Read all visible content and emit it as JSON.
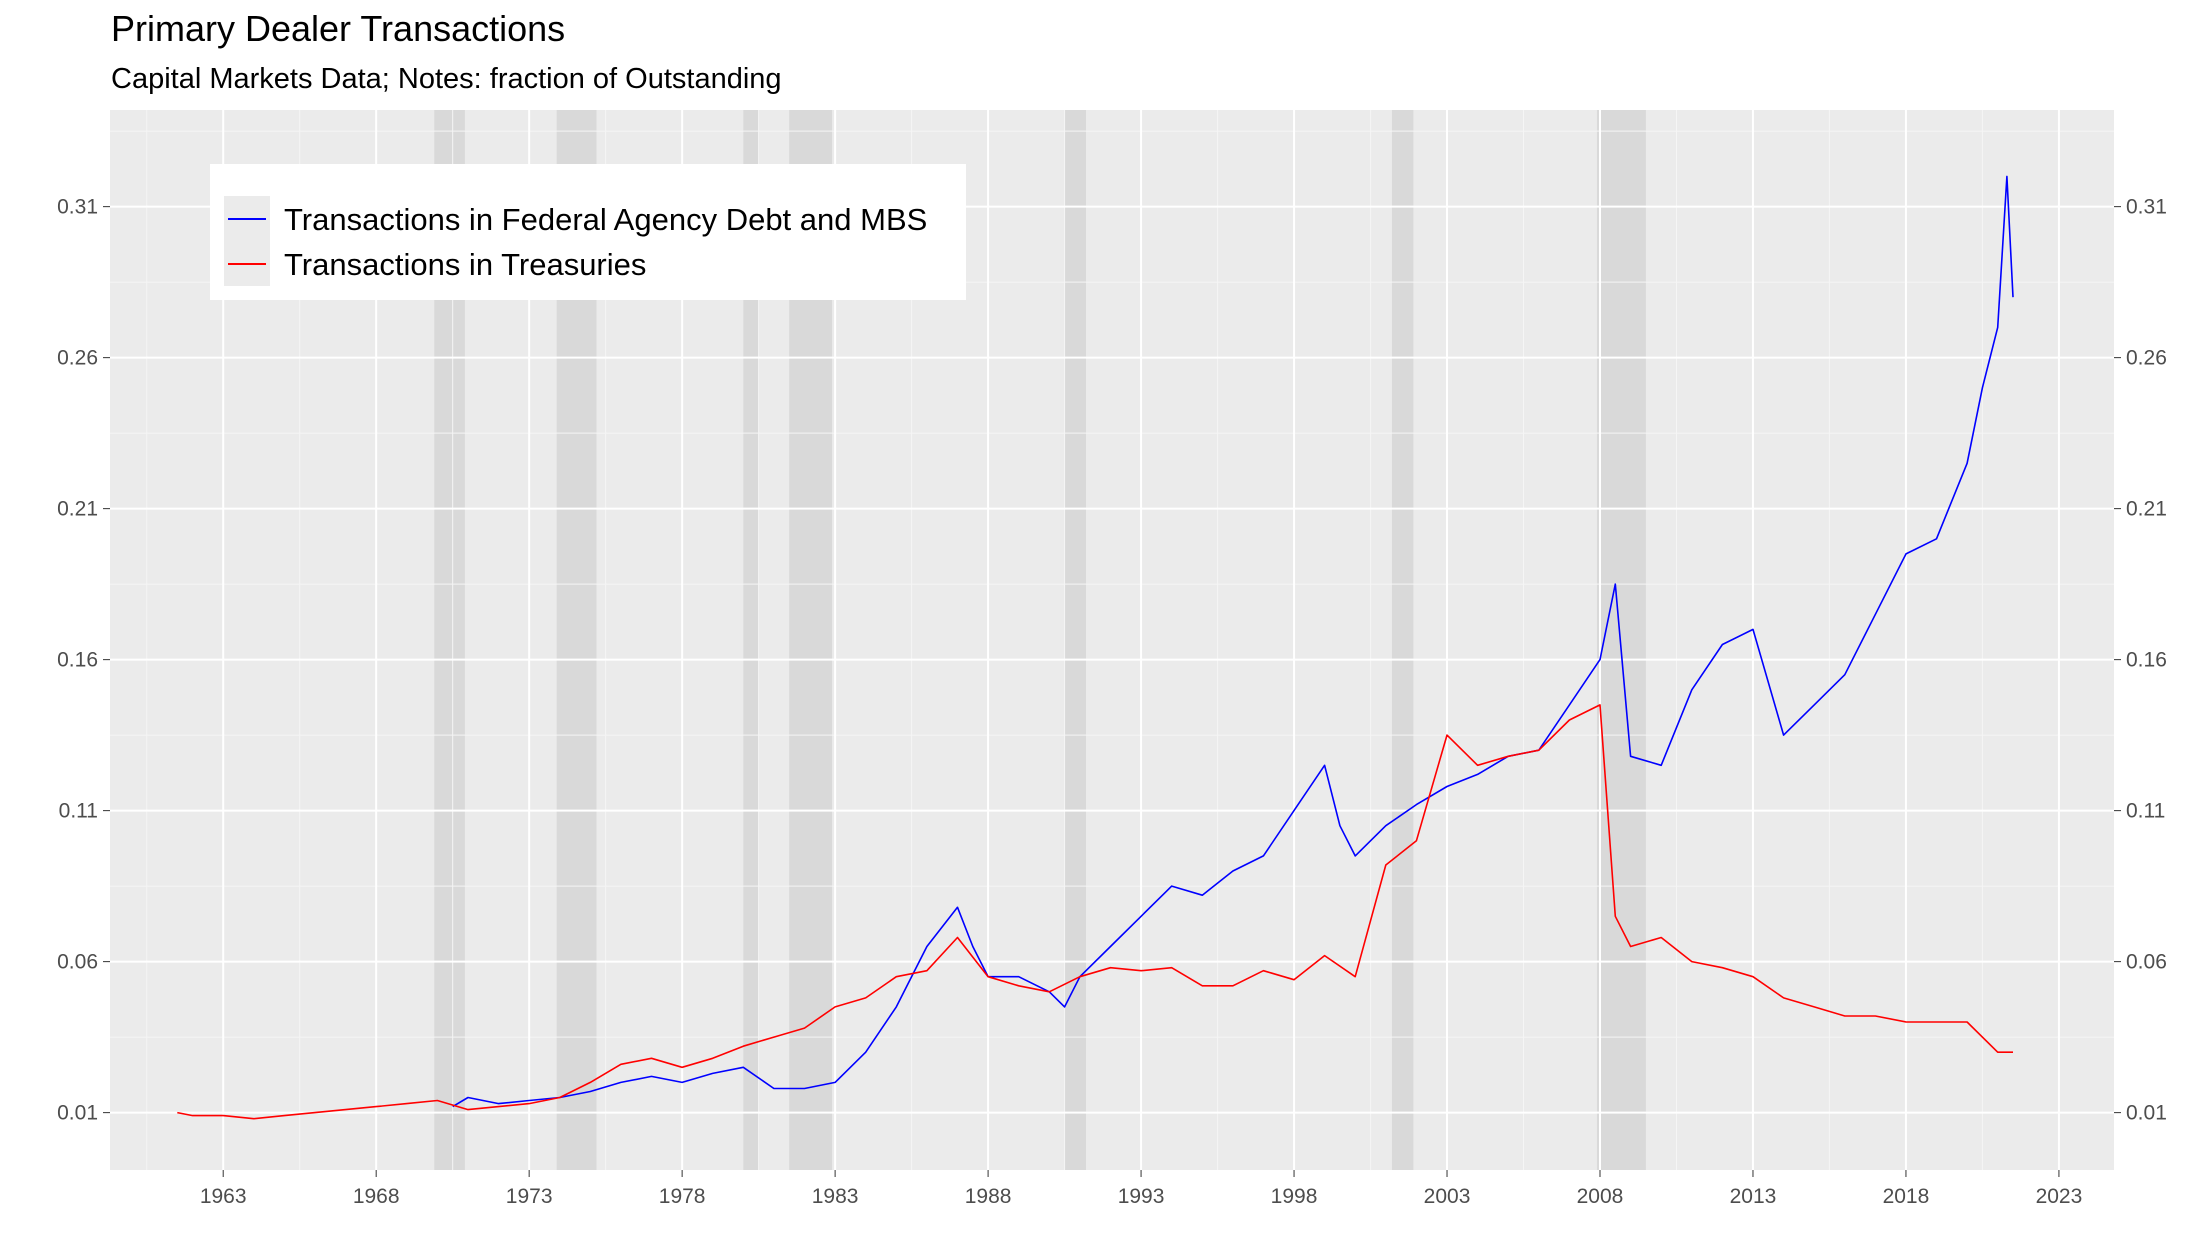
{
  "chart_data": {
    "type": "line",
    "title": "Primary Dealer Transactions",
    "subtitle": "Capital Markets Data; Notes: fraction of Outstanding",
    "xlabel": "",
    "ylabel": "",
    "x_ticks": [
      "1963",
      "1968",
      "1973",
      "1978",
      "1983",
      "1988",
      "1993",
      "1998",
      "2003",
      "2008",
      "2013",
      "2018",
      "2023"
    ],
    "y_ticks": [
      "0.01",
      "0.06",
      "0.11",
      "0.16",
      "0.21",
      "0.26",
      "0.31"
    ],
    "xlim": [
      1959.3,
      2024.8
    ],
    "ylim": [
      -0.009,
      0.342
    ],
    "grid": true,
    "legend_position": "top-left",
    "recession_bands": [
      [
        1969.9,
        1970.9
      ],
      [
        1973.9,
        1975.2
      ],
      [
        1980.0,
        1980.5
      ],
      [
        1981.5,
        1982.9
      ],
      [
        1990.5,
        1991.2
      ],
      [
        2001.2,
        2001.9
      ],
      [
        2007.9,
        2009.5
      ]
    ],
    "series": [
      {
        "name": "Transactions in Federal Agency Debt and MBS",
        "color": "#0000ff",
        "x": [
          1970.5,
          1971.0,
          1972.0,
          1973.0,
          1974.0,
          1975.0,
          1976.0,
          1977.0,
          1978.0,
          1979.0,
          1980.0,
          1981.0,
          1982.0,
          1983.0,
          1984.0,
          1985.0,
          1986.0,
          1987.0,
          1987.5,
          1988.0,
          1989.0,
          1990.0,
          1990.5,
          1991.0,
          1992.0,
          1993.0,
          1994.0,
          1995.0,
          1996.0,
          1997.0,
          1998.0,
          1999.0,
          1999.5,
          2000.0,
          2001.0,
          2002.0,
          2003.0,
          2004.0,
          2005.0,
          2006.0,
          2007.0,
          2008.0,
          2008.5,
          2009.0,
          2010.0,
          2011.0,
          2012.0,
          2013.0,
          2014.0,
          2015.0,
          2016.0,
          2017.0,
          2018.0,
          2019.0,
          2020.0,
          2020.5,
          2021.0,
          2021.3,
          2021.5
        ],
        "y": [
          0.012,
          0.015,
          0.013,
          0.014,
          0.015,
          0.017,
          0.02,
          0.022,
          0.02,
          0.023,
          0.025,
          0.018,
          0.018,
          0.02,
          0.03,
          0.045,
          0.065,
          0.078,
          0.065,
          0.055,
          0.055,
          0.05,
          0.045,
          0.055,
          0.065,
          0.075,
          0.085,
          0.082,
          0.09,
          0.095,
          0.11,
          0.125,
          0.105,
          0.095,
          0.105,
          0.112,
          0.118,
          0.122,
          0.128,
          0.13,
          0.145,
          0.16,
          0.185,
          0.128,
          0.125,
          0.15,
          0.165,
          0.17,
          0.135,
          0.145,
          0.155,
          0.175,
          0.195,
          0.2,
          0.225,
          0.25,
          0.27,
          0.32,
          0.28
        ]
      },
      {
        "name": "Transactions in Treasuries",
        "color": "#ff0000",
        "x": [
          1961.5,
          1962.0,
          1963.0,
          1964.0,
          1965.0,
          1966.0,
          1967.0,
          1968.0,
          1969.0,
          1970.0,
          1971.0,
          1972.0,
          1973.0,
          1974.0,
          1975.0,
          1976.0,
          1977.0,
          1978.0,
          1979.0,
          1980.0,
          1981.0,
          1982.0,
          1983.0,
          1984.0,
          1985.0,
          1986.0,
          1987.0,
          1988.0,
          1989.0,
          1990.0,
          1991.0,
          1992.0,
          1993.0,
          1994.0,
          1995.0,
          1996.0,
          1997.0,
          1998.0,
          1999.0,
          2000.0,
          2001.0,
          2002.0,
          2003.0,
          2004.0,
          2005.0,
          2006.0,
          2007.0,
          2008.0,
          2008.5,
          2009.0,
          2010.0,
          2011.0,
          2012.0,
          2013.0,
          2014.0,
          2015.0,
          2016.0,
          2017.0,
          2018.0,
          2019.0,
          2020.0,
          2021.0,
          2021.5
        ],
        "y": [
          0.01,
          0.009,
          0.009,
          0.008,
          0.009,
          0.01,
          0.011,
          0.012,
          0.013,
          0.014,
          0.011,
          0.012,
          0.013,
          0.015,
          0.02,
          0.026,
          0.028,
          0.025,
          0.028,
          0.032,
          0.035,
          0.038,
          0.045,
          0.048,
          0.055,
          0.057,
          0.068,
          0.055,
          0.052,
          0.05,
          0.055,
          0.058,
          0.057,
          0.058,
          0.052,
          0.052,
          0.057,
          0.054,
          0.062,
          0.055,
          0.092,
          0.1,
          0.135,
          0.125,
          0.128,
          0.13,
          0.14,
          0.145,
          0.075,
          0.065,
          0.068,
          0.06,
          0.058,
          0.055,
          0.048,
          0.045,
          0.042,
          0.042,
          0.04,
          0.04,
          0.04,
          0.03,
          0.03
        ]
      }
    ]
  }
}
